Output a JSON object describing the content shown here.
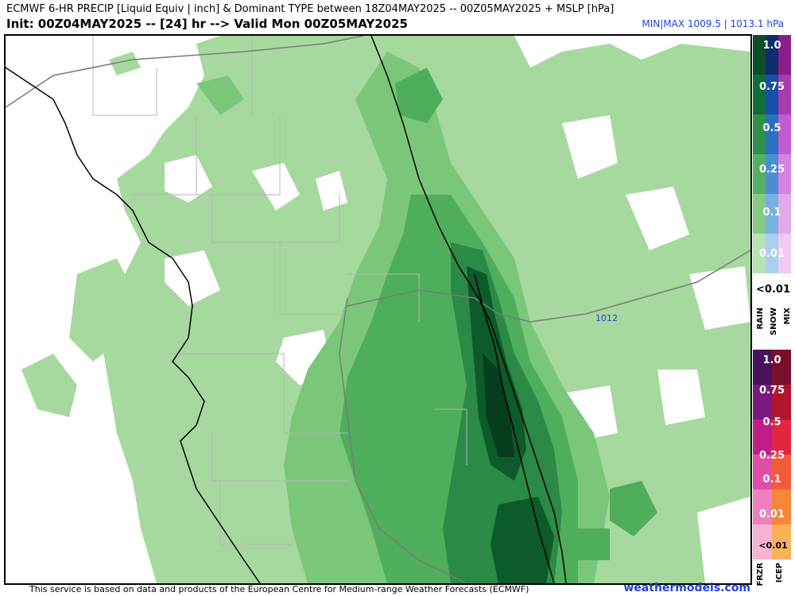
{
  "header": {
    "title_line1": "ECMWF 6-HR PRECIP [Liquid Equiv | inch] & Dominant TYPE between 18Z04MAY2025 -- 00Z05MAY2025 + MSLP [hPa]",
    "title_line2": "Init: 00Z04MAY2025 -- [24] hr --> Valid Mon 00Z05MAY2025",
    "minmax": "MIN|MAX 1009.5 | 1013.1 hPa"
  },
  "map": {
    "isobar_label": "1012",
    "colors": {
      "precip_light": "#a6d99e",
      "precip_mid1": "#7bc77a",
      "precip_mid2": "#4fae5c",
      "precip_heavy": "#2a8a46",
      "precip_very_heavy": "#0d5a2a",
      "precip_max": "#063d1c",
      "county_lines": "#b5b5b5",
      "coast": "#000000",
      "isobar": "#7a7a7a"
    }
  },
  "legend": {
    "rain_snow_mix_levels": [
      "1.0",
      "0.75",
      "0.5",
      "0.25",
      "0.1",
      "0.01"
    ],
    "lt_label_1": "<0.01",
    "type_labels_1": [
      "RAIN",
      "SNOW",
      "MIX"
    ],
    "frz_icep_levels": [
      "1.0",
      "0.75",
      "0.5",
      "0.25",
      "0.1",
      "0.01"
    ],
    "lt_label_2": "<0.01",
    "type_labels_2": [
      "FRZR",
      "ICEP"
    ]
  },
  "footer": {
    "credit": "This service is based on data and products of the European Centre for Medium-range Weather Forecasts (ECMWF)",
    "brand": "weathermodels.com"
  }
}
